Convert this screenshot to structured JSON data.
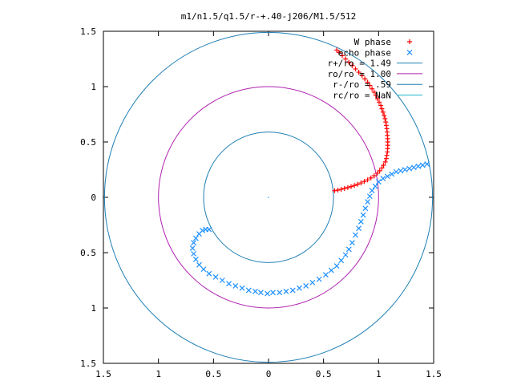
{
  "chart_data": {
    "type": "scatter",
    "title": "m1/n1.5/q1.5/r-+.40-j206/M1.5/512",
    "xlabel": "",
    "ylabel": "",
    "xlim": [
      -1.5,
      1.5
    ],
    "ylim": [
      -1.5,
      1.5
    ],
    "x_ticks": [
      {
        "value": -1.5,
        "label": "1.5"
      },
      {
        "value": -1,
        "label": "1"
      },
      {
        "value": -0.5,
        "label": "0.5"
      },
      {
        "value": 0,
        "label": "0"
      },
      {
        "value": 0.5,
        "label": "0.5"
      },
      {
        "value": 1,
        "label": "1"
      },
      {
        "value": 1.5,
        "label": "1.5"
      }
    ],
    "y_ticks": [
      {
        "value": 1.5,
        "label": "1.5"
      },
      {
        "value": 1,
        "label": "1"
      },
      {
        "value": 0.5,
        "label": "0.5"
      },
      {
        "value": 0,
        "label": "0"
      },
      {
        "value": -0.5,
        "label": "0.5"
      },
      {
        "value": -1,
        "label": "1"
      },
      {
        "value": -1.5,
        "label": "1.5"
      }
    ],
    "grid": false,
    "legend_position": "top-right",
    "series": [
      {
        "name": "W phase",
        "marker": "+",
        "color": "#ff0000",
        "points": [
          [
            0.6,
            0.06
          ],
          [
            0.63,
            0.065
          ],
          [
            0.66,
            0.072
          ],
          [
            0.69,
            0.08
          ],
          [
            0.72,
            0.088
          ],
          [
            0.75,
            0.097
          ],
          [
            0.78,
            0.107
          ],
          [
            0.81,
            0.118
          ],
          [
            0.84,
            0.13
          ],
          [
            0.87,
            0.143
          ],
          [
            0.9,
            0.158
          ],
          [
            0.93,
            0.175
          ],
          [
            0.96,
            0.195
          ],
          [
            0.99,
            0.218
          ],
          [
            1.01,
            0.24
          ],
          [
            1.03,
            0.265
          ],
          [
            1.045,
            0.29
          ],
          [
            1.06,
            0.32
          ],
          [
            1.07,
            0.35
          ],
          [
            1.075,
            0.38
          ],
          [
            1.08,
            0.41
          ],
          [
            1.082,
            0.44
          ],
          [
            1.083,
            0.47
          ],
          [
            1.083,
            0.5
          ],
          [
            1.082,
            0.53
          ],
          [
            1.08,
            0.56
          ],
          [
            1.078,
            0.59
          ],
          [
            1.075,
            0.62
          ],
          [
            1.07,
            0.65
          ],
          [
            1.065,
            0.68
          ],
          [
            1.058,
            0.71
          ],
          [
            1.05,
            0.74
          ],
          [
            1.04,
            0.77
          ],
          [
            1.03,
            0.8
          ],
          [
            1.02,
            0.83
          ],
          [
            1.005,
            0.86
          ],
          [
            0.99,
            0.89
          ],
          [
            0.975,
            0.92
          ],
          [
            0.96,
            0.95
          ],
          [
            0.94,
            0.98
          ],
          [
            0.92,
            1.01
          ],
          [
            0.9,
            1.04
          ],
          [
            0.875,
            1.07
          ],
          [
            0.85,
            1.1
          ],
          [
            0.82,
            1.13
          ],
          [
            0.79,
            1.16
          ],
          [
            0.76,
            1.19
          ],
          [
            0.73,
            1.22
          ],
          [
            0.7,
            1.25
          ],
          [
            0.67,
            1.28
          ],
          [
            0.64,
            1.31
          ],
          [
            0.62,
            1.33
          ]
        ]
      },
      {
        "name": "echo phase",
        "marker": "x",
        "color": "#1e90ff",
        "points": [
          [
            1.44,
            0.3
          ],
          [
            1.4,
            0.29
          ],
          [
            1.36,
            0.28
          ],
          [
            1.32,
            0.27
          ],
          [
            1.28,
            0.26
          ],
          [
            1.24,
            0.25
          ],
          [
            1.2,
            0.24
          ],
          [
            1.16,
            0.23
          ],
          [
            1.12,
            0.21
          ],
          [
            1.08,
            0.19
          ],
          [
            1.04,
            0.17
          ],
          [
            1.0,
            0.14
          ],
          [
            0.97,
            0.1
          ],
          [
            0.94,
            0.06
          ],
          [
            0.92,
            0.01
          ],
          [
            0.9,
            -0.04
          ],
          [
            0.88,
            -0.1
          ],
          [
            0.86,
            -0.16
          ],
          [
            0.84,
            -0.22
          ],
          [
            0.82,
            -0.28
          ],
          [
            0.79,
            -0.34
          ],
          [
            0.76,
            -0.41
          ],
          [
            0.73,
            -0.47
          ],
          [
            0.7,
            -0.52
          ],
          [
            0.66,
            -0.57
          ],
          [
            0.62,
            -0.62
          ],
          [
            0.57,
            -0.66
          ],
          [
            0.52,
            -0.7
          ],
          [
            0.46,
            -0.74
          ],
          [
            0.4,
            -0.77
          ],
          [
            0.34,
            -0.8
          ],
          [
            0.28,
            -0.82
          ],
          [
            0.22,
            -0.84
          ],
          [
            0.16,
            -0.85
          ],
          [
            0.1,
            -0.86
          ],
          [
            0.04,
            -0.86
          ],
          [
            -0.01,
            -0.87
          ],
          [
            -0.07,
            -0.86
          ],
          [
            -0.12,
            -0.85
          ],
          [
            -0.18,
            -0.84
          ],
          [
            -0.24,
            -0.82
          ],
          [
            -0.3,
            -0.8
          ],
          [
            -0.36,
            -0.78
          ],
          [
            -0.42,
            -0.75
          ],
          [
            -0.48,
            -0.72
          ],
          [
            -0.54,
            -0.69
          ],
          [
            -0.59,
            -0.65
          ],
          [
            -0.63,
            -0.61
          ],
          [
            -0.66,
            -0.56
          ],
          [
            -0.68,
            -0.51
          ],
          [
            -0.69,
            -0.46
          ],
          [
            -0.68,
            -0.41
          ],
          [
            -0.66,
            -0.37
          ],
          [
            -0.63,
            -0.33
          ],
          [
            -0.6,
            -0.3
          ],
          [
            -0.57,
            -0.29
          ],
          [
            -0.54,
            -0.29
          ]
        ]
      },
      {
        "name": "r+/ro = 1.49",
        "type": "circle",
        "radius": 1.49,
        "color": "#1f7fb4"
      },
      {
        "name": "ro/ro = 1.00",
        "type": "circle",
        "radius": 1.0,
        "color": "#b020b0"
      },
      {
        "name": "r-/ro = .59",
        "type": "circle",
        "radius": 0.59,
        "color": "#1f7fb4"
      },
      {
        "name": "rc/ro = NaN",
        "type": "circle",
        "radius": null,
        "color": "#20b8c8"
      }
    ]
  }
}
